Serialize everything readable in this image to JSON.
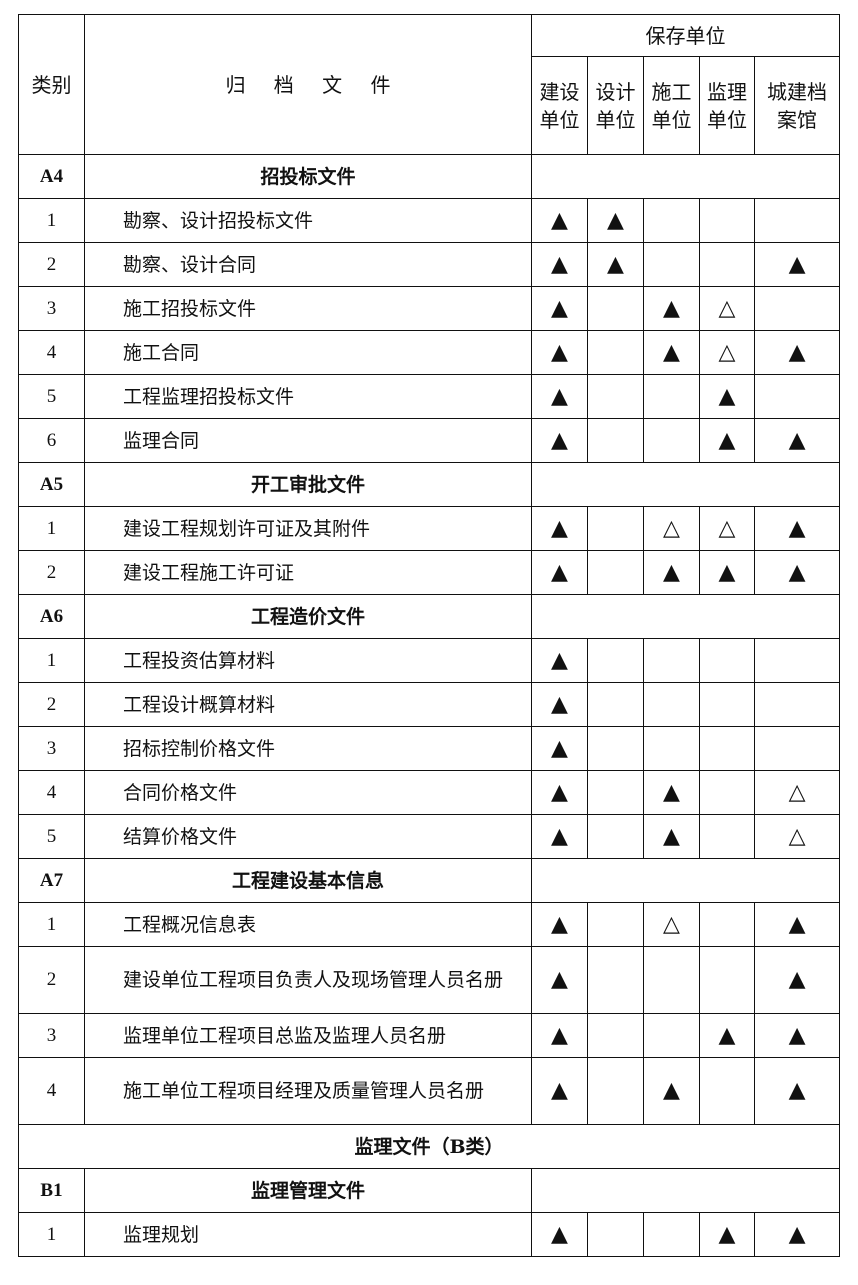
{
  "header": {
    "category": "类别",
    "file": "归 档 文 件",
    "group": "保存单位",
    "units": [
      "建设\n单位",
      "设计\n单位",
      "施工\n单位",
      "监理\n单位",
      "城建档\n案馆"
    ]
  },
  "legend": {
    "required": "▲",
    "optional": "△"
  },
  "rows": [
    {
      "type": "section",
      "cat": "A4",
      "title": "招投标文件"
    },
    {
      "type": "item",
      "cat": "1",
      "title": "勘察、设计招投标文件",
      "marks": [
        "▲",
        "▲",
        "",
        "",
        ""
      ]
    },
    {
      "type": "item",
      "cat": "2",
      "title": "勘察、设计合同",
      "marks": [
        "▲",
        "▲",
        "",
        "",
        "▲"
      ]
    },
    {
      "type": "item",
      "cat": "3",
      "title": "施工招投标文件",
      "marks": [
        "▲",
        "",
        "▲",
        "△",
        ""
      ]
    },
    {
      "type": "item",
      "cat": "4",
      "title": "施工合同",
      "marks": [
        "▲",
        "",
        "▲",
        "△",
        "▲"
      ]
    },
    {
      "type": "item",
      "cat": "5",
      "title": "工程监理招投标文件",
      "marks": [
        "▲",
        "",
        "",
        "▲",
        ""
      ]
    },
    {
      "type": "item",
      "cat": "6",
      "title": "监理合同",
      "marks": [
        "▲",
        "",
        "",
        "▲",
        "▲"
      ]
    },
    {
      "type": "section",
      "cat": "A5",
      "title": "开工审批文件"
    },
    {
      "type": "item",
      "cat": "1",
      "title": "建设工程规划许可证及其附件",
      "marks": [
        "▲",
        "",
        "△",
        "△",
        "▲"
      ]
    },
    {
      "type": "item",
      "cat": "2",
      "title": "建设工程施工许可证",
      "marks": [
        "▲",
        "",
        "▲",
        "▲",
        "▲"
      ]
    },
    {
      "type": "section",
      "cat": "A6",
      "title": "工程造价文件"
    },
    {
      "type": "item",
      "cat": "1",
      "title": "工程投资估算材料",
      "marks": [
        "▲",
        "",
        "",
        "",
        ""
      ]
    },
    {
      "type": "item",
      "cat": "2",
      "title": "工程设计概算材料",
      "marks": [
        "▲",
        "",
        "",
        "",
        ""
      ]
    },
    {
      "type": "item",
      "cat": "3",
      "title": "招标控制价格文件",
      "marks": [
        "▲",
        "",
        "",
        "",
        ""
      ]
    },
    {
      "type": "item",
      "cat": "4",
      "title": "合同价格文件",
      "marks": [
        "▲",
        "",
        "▲",
        "",
        "△"
      ]
    },
    {
      "type": "item",
      "cat": "5",
      "title": "结算价格文件",
      "marks": [
        "▲",
        "",
        "▲",
        "",
        "△"
      ]
    },
    {
      "type": "section",
      "cat": "A7",
      "title": "工程建设基本信息"
    },
    {
      "type": "item",
      "cat": "1",
      "title": "工程概况信息表",
      "marks": [
        "▲",
        "",
        "△",
        "",
        "▲"
      ]
    },
    {
      "type": "item",
      "cat": "2",
      "title": "建设单位工程项目负责人及现场管理人员名册",
      "tall": true,
      "marks": [
        "▲",
        "",
        "",
        "",
        "▲"
      ]
    },
    {
      "type": "item",
      "cat": "3",
      "title": "监理单位工程项目总监及监理人员名册",
      "marks": [
        "▲",
        "",
        "",
        "▲",
        "▲"
      ]
    },
    {
      "type": "item",
      "cat": "4",
      "title": "施工单位工程项目经理及质量管理人员名册",
      "tall": true,
      "marks": [
        "▲",
        "",
        "▲",
        "",
        "▲"
      ]
    },
    {
      "type": "part",
      "title": "监理文件（B类）"
    },
    {
      "type": "section",
      "cat": "B1",
      "title": "监理管理文件"
    },
    {
      "type": "item",
      "cat": "1",
      "title": "监理规划",
      "marks": [
        "▲",
        "",
        "",
        "▲",
        "▲"
      ]
    }
  ]
}
